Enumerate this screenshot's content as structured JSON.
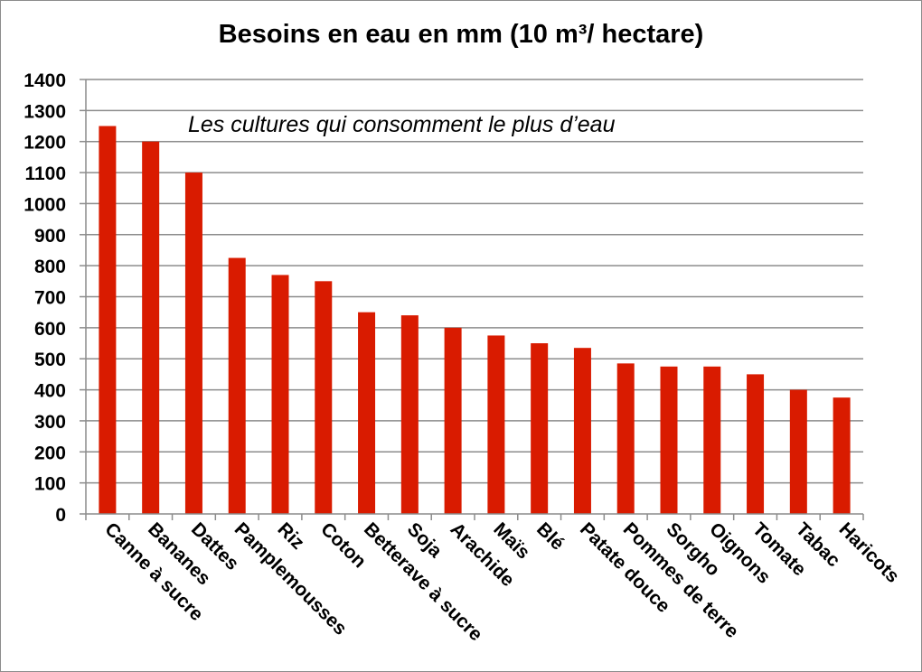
{
  "chart_data": {
    "type": "bar",
    "title": "Besoins en eau en mm (10 m³/ hectare)",
    "annotation": "Les cultures qui consomment le plus d’eau",
    "categories": [
      "Canne à sucre",
      "Bananes",
      "Dattes",
      "Pamplemousses",
      "Riz",
      "Coton",
      "Betterave à sucre",
      "Soja",
      "Arachide",
      "Maïs",
      "Blé",
      "Patate douce",
      "Pommes de terre",
      "Sorgho",
      "Oignons",
      "Tomate",
      "Tabac",
      "Haricots"
    ],
    "values": [
      1250,
      1200,
      1100,
      825,
      770,
      750,
      650,
      640,
      600,
      575,
      550,
      535,
      485,
      475,
      475,
      450,
      400,
      375
    ],
    "ylim": [
      0,
      1400
    ],
    "yticks": [
      0,
      100,
      200,
      300,
      400,
      500,
      600,
      700,
      800,
      900,
      1000,
      1100,
      1200,
      1300,
      1400
    ],
    "xlabel": "",
    "ylabel": "",
    "grid": true,
    "legend": "none",
    "bar_color": "#d91b00",
    "grid_color": "#8c8c8c"
  }
}
